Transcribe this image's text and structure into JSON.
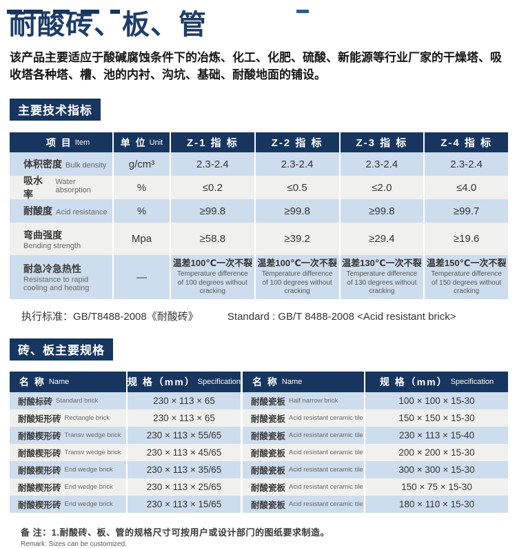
{
  "theme": {
    "navy": "#17365f",
    "navy-title": "#1e3d68",
    "row-blue": "#cedded",
    "row-gray": "#f0f1ef"
  },
  "page": {
    "title": "耐酸砖、板、管",
    "description": "该产品主要适应于酸碱腐蚀条件下的冶炼、化工、化肥、硫酸、新能源等行业厂家的干燥塔、吸收塔各种塔、槽、池的内衬、沟坑、基础、耐酸地面的铺设。"
  },
  "section_technical": {
    "heading": "主要技术指标",
    "table": {
      "headers": {
        "item_cn": "项 目",
        "item_en": "Item",
        "unit_cn": "单 位",
        "unit_en": "Unit",
        "z1": "Z-1 指 标",
        "z2": "Z-2 指 标",
        "z3": "Z-3 指 标",
        "z4": "Z-4 指 标"
      },
      "rows": [
        {
          "cn": "体积密度",
          "en": "Bulk density",
          "unit": "g/cm³",
          "v1": "2.3-2.4",
          "v2": "2.3-2.4",
          "v3": "2.3-2.4",
          "v4": "2.3-2.4"
        },
        {
          "cn": "吸水率",
          "en": "Water absorption",
          "unit": "%",
          "v1": "≤0.2",
          "v2": "≤0.5",
          "v3": "≤2.0",
          "v4": "≤4.0"
        },
        {
          "cn": "耐酸度",
          "en": "Acid resistance",
          "unit": "%",
          "v1": "≥99.8",
          "v2": "≥99.8",
          "v3": "≥99.8",
          "v4": "≥99.7"
        },
        {
          "cn": "弯曲强度",
          "en": "Bending strength",
          "unit": "Mpa",
          "v1": "≥58.8",
          "v2": "≥39.2",
          "v3": "≥29.4",
          "v4": "≥19.6"
        }
      ],
      "thermal": {
        "cn": "耐急冷急热性",
        "en1": "Resistance to rapid",
        "en2": "cooling and heating",
        "unit": "—",
        "cells": [
          {
            "cn": "温差100℃一次不裂",
            "en": "Temperature difference of 100 degrees without cracking"
          },
          {
            "cn": "温差100℃一次不裂",
            "en": "Temperature difference of 100 degrees without cracking"
          },
          {
            "cn": "温差130℃一次不裂",
            "en": "Temperature difference of 130 degrees without cracking"
          },
          {
            "cn": "温差150℃一次不裂",
            "en": "Temperature difference of 150 degrees without cracking"
          }
        ]
      }
    },
    "standard_cn": "执行标准：GB/T8488-2008《耐酸砖》",
    "standard_en": "Standard : GB/T 8488-2008 <Acid resistant brick>"
  },
  "section_specs": {
    "heading": "砖、板主要规格",
    "table": {
      "headers": {
        "name_cn": "名 称",
        "name_en": "Name",
        "spec_cn": "规 格（mm）",
        "spec_en": "Specification"
      },
      "left_rows": [
        {
          "cn": "耐酸标砖",
          "en": "Standard brick",
          "spec": "230 × 113 × 65"
        },
        {
          "cn": "耐酸矩形砖",
          "en": "Rectangle brick",
          "spec": "230 × 113 × 65"
        },
        {
          "cn": "耐酸楔形砖",
          "en": "Transv wedge brick",
          "spec": "230 × 113 × 55/65"
        },
        {
          "cn": "耐酸楔形砖",
          "en": "Transv wedge brick",
          "spec": "230 × 113 × 45/65"
        },
        {
          "cn": "耐酸楔形砖",
          "en": "End wedge brick",
          "spec": "230 × 113 × 35/65"
        },
        {
          "cn": "耐酸楔形砖",
          "en": "End wedge brick",
          "spec": "230 × 113 × 25/65"
        },
        {
          "cn": "耐酸楔形砖",
          "en": "End wedge brick",
          "spec": "230 × 113 × 15/65"
        }
      ],
      "right_rows": [
        {
          "cn": "耐酸瓷板",
          "en": "Half narrow brick",
          "spec": "100 × 100 × 15-30"
        },
        {
          "cn": "耐酸瓷板",
          "en": "Acid resistant ceramic tile",
          "spec": "150 × 150 × 15-30"
        },
        {
          "cn": "耐酸瓷板",
          "en": "Acid resistant ceramic tile",
          "spec": "230 × 113 × 15-40"
        },
        {
          "cn": "耐酸瓷板",
          "en": "Acid resistant ceramic tile",
          "spec": "200 × 200 × 15-30"
        },
        {
          "cn": "耐酸瓷板",
          "en": "Acid resistant ceramic tile",
          "spec": "300 × 300 × 15-30"
        },
        {
          "cn": "耐酸瓷板",
          "en": "Acid resistant ceramic tile",
          "spec": "150 × 75 × 15-30"
        },
        {
          "cn": "耐酸瓷板",
          "en": "Acid resistant ceramic tile",
          "spec": "180 × 110 × 15-30"
        }
      ]
    }
  },
  "footer": {
    "note_label": "备 注：",
    "note_text": "1.耐酸砖、板、管的规格尺寸可按用户或设计部门的图纸要求制造。",
    "remark": "Remark: Sizes can be customized."
  }
}
